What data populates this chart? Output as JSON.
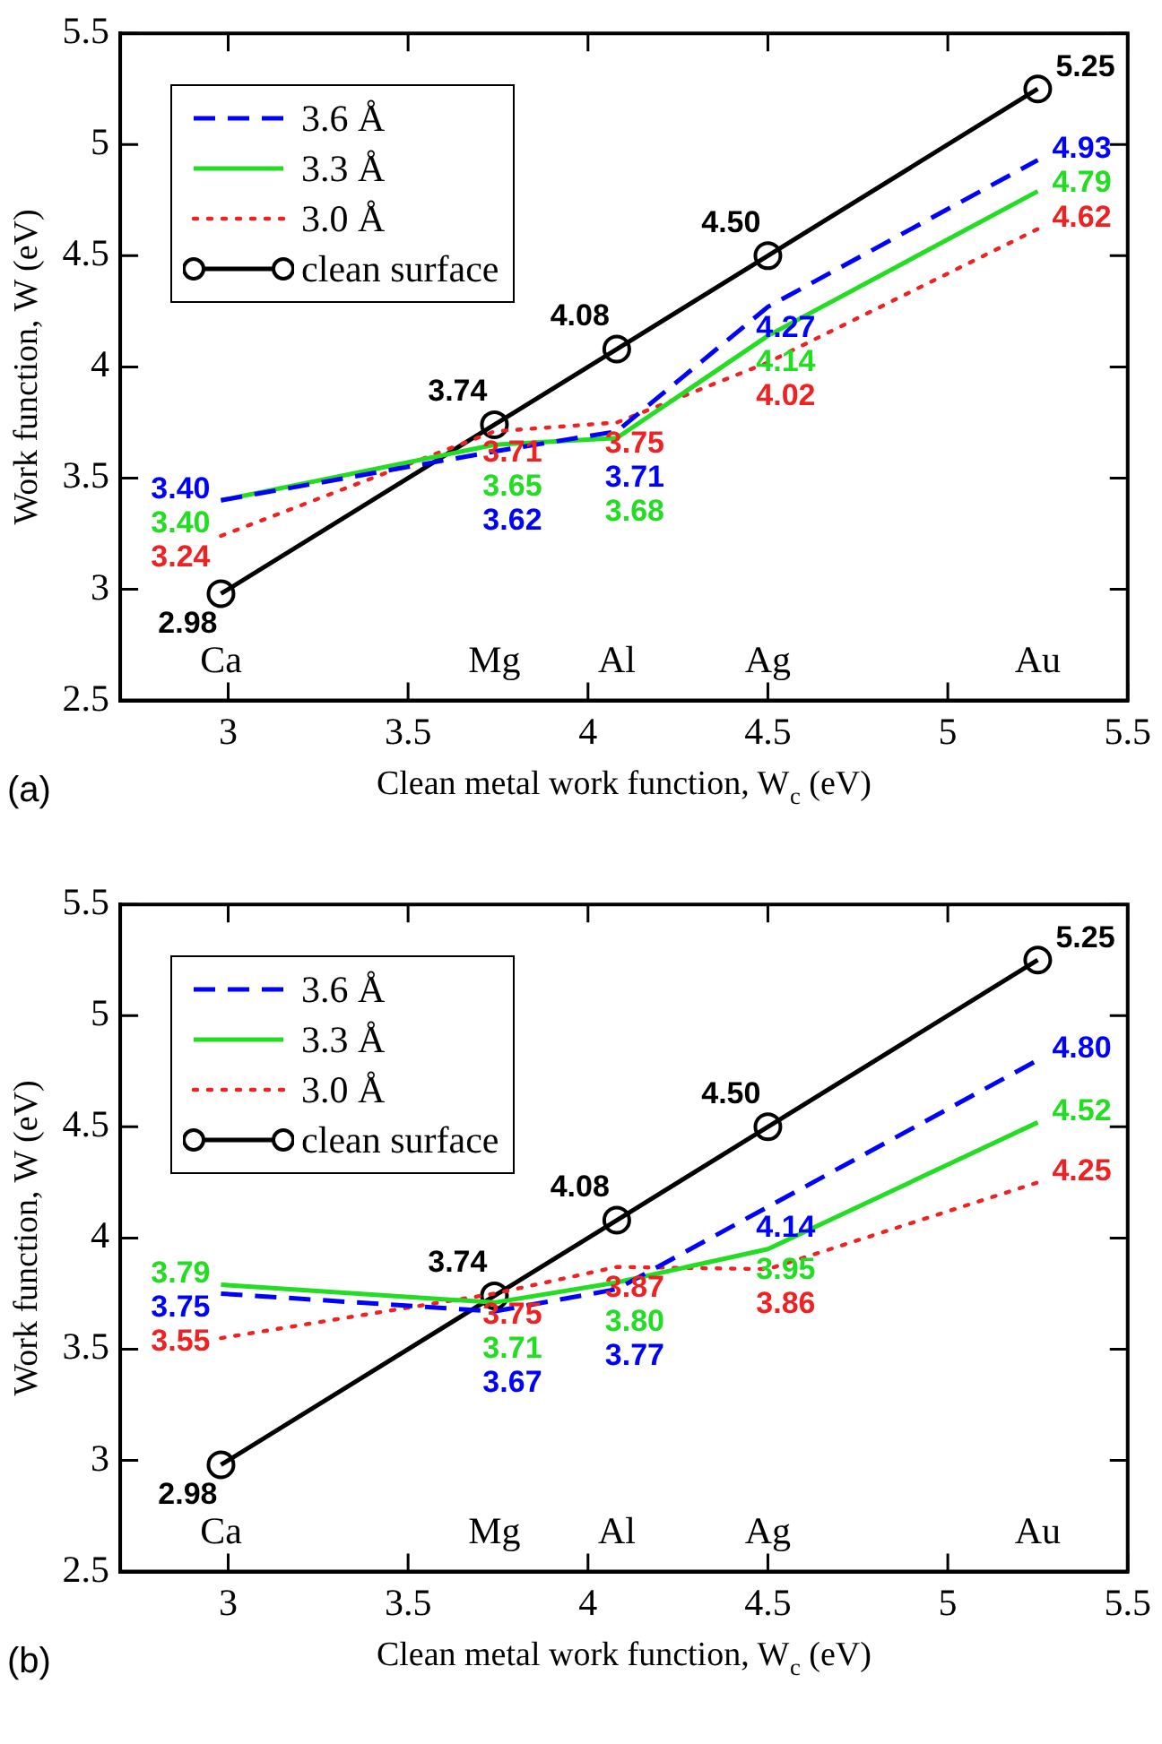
{
  "chart_data": [
    {
      "type": "line",
      "xlabel": "Clean metal work function, W$_{c}$ (eV)",
      "ylabel": "Work function, W (eV)",
      "x": [
        2.98,
        3.74,
        4.08,
        4.5,
        5.25
      ],
      "xlim": [
        2.7,
        5.5
      ],
      "ylim": [
        2.5,
        5.5
      ],
      "xticks": [
        3,
        3.5,
        4,
        4.5,
        5,
        5.5
      ],
      "yticks": [
        2.5,
        3,
        3.5,
        4,
        4.5,
        5,
        5.5
      ],
      "grid": false,
      "legend": "top left",
      "series": [
        {
          "name": "3.6 Å",
          "color": "#0000ff",
          "line_style": "dashed",
          "marker": "none",
          "values": [
            3.4,
            3.62,
            3.71,
            4.27,
            4.93
          ],
          "value_labels": [
            "3.40",
            "3.62",
            "3.71",
            "4.27",
            "4.93"
          ]
        },
        {
          "name": "3.3 Å",
          "color": "#22dd22",
          "line_style": "solid",
          "marker": "none",
          "values": [
            3.4,
            3.65,
            3.68,
            4.14,
            4.79
          ],
          "value_labels": [
            "3.40",
            "3.65",
            "3.68",
            "4.14",
            "4.79"
          ]
        },
        {
          "name": "3.0 Å",
          "color": "#ee2222",
          "line_style": "dotted",
          "marker": "none",
          "values": [
            3.24,
            3.71,
            3.75,
            4.02,
            4.62
          ],
          "value_labels": [
            "3.24",
            "3.71",
            "3.75",
            "4.02",
            "4.62"
          ]
        },
        {
          "name": "clean surface",
          "color": "#000000",
          "line_style": "solid",
          "marker": "circle",
          "values": [
            2.98,
            3.74,
            4.08,
            4.5,
            5.25
          ],
          "value_labels": [
            "2.98",
            "3.74",
            "4.08",
            "4.50",
            "5.25"
          ]
        }
      ],
      "annotations": [
        "Ca",
        "Mg",
        "Al",
        "Ag",
        "Au",
        "(a)"
      ]
    },
    {
      "type": "line",
      "xlabel": "Clean metal work function, W$_{c}$ (eV)",
      "ylabel": "Work function, W (eV)",
      "x": [
        2.98,
        3.74,
        4.08,
        4.5,
        5.25
      ],
      "xlim": [
        2.7,
        5.5
      ],
      "ylim": [
        2.5,
        5.5
      ],
      "xticks": [
        3,
        3.5,
        4,
        4.5,
        5,
        5.5
      ],
      "yticks": [
        2.5,
        3,
        3.5,
        4,
        4.5,
        5,
        5.5
      ],
      "grid": false,
      "legend": "top left",
      "series": [
        {
          "name": "3.6 Å",
          "color": "#0000ff",
          "line_style": "dashed",
          "marker": "none",
          "values": [
            3.75,
            3.67,
            3.77,
            4.14,
            4.8
          ],
          "value_labels": [
            "3.75",
            "3.67",
            "3.77",
            "4.14",
            "4.80"
          ]
        },
        {
          "name": "3.3 Å",
          "color": "#22dd22",
          "line_style": "solid",
          "marker": "none",
          "values": [
            3.79,
            3.71,
            3.8,
            3.95,
            4.52
          ],
          "value_labels": [
            "3.79",
            "3.71",
            "3.80",
            "3.95",
            "4.52"
          ]
        },
        {
          "name": "3.0 Å",
          "color": "#ee2222",
          "line_style": "dotted",
          "marker": "none",
          "values": [
            3.55,
            3.75,
            3.87,
            3.86,
            4.25
          ],
          "value_labels": [
            "3.55",
            "3.75",
            "3.87",
            "3.86",
            "4.25"
          ]
        },
        {
          "name": "clean surface",
          "color": "#000000",
          "line_style": "solid",
          "marker": "circle",
          "values": [
            2.98,
            3.74,
            4.08,
            4.5,
            5.25
          ],
          "value_labels": [
            "2.98",
            "3.74",
            "4.08",
            "4.50",
            "5.25"
          ]
        }
      ],
      "annotations": [
        "Ca",
        "Mg",
        "Al",
        "Ag",
        "Au",
        "(b)"
      ]
    }
  ]
}
